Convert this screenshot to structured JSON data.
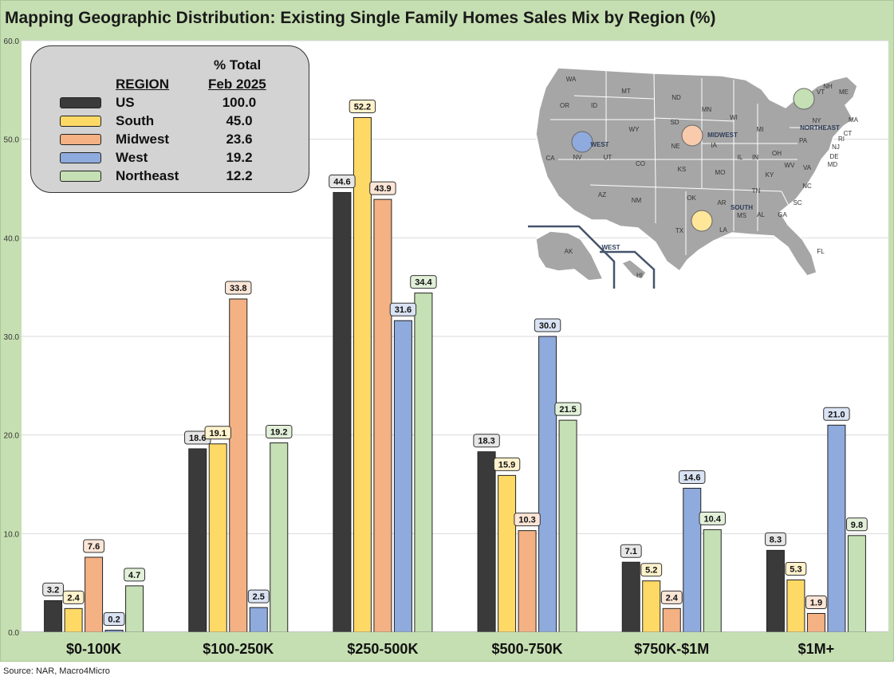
{
  "title": "Mapping Geographic Distribution: Existing Single Family Homes Sales Mix by Region (%)",
  "source": "Source: NAR, Macro4Micro",
  "legend": {
    "header_region": "REGION",
    "header_total_line1": "% Total",
    "header_total_line2": "Feb 2025",
    "rows": [
      {
        "name": "US",
        "value": "100.0",
        "color": "#3a3a3a"
      },
      {
        "name": "South",
        "value": "45.0",
        "color": "#ffd966"
      },
      {
        "name": "Midwest",
        "value": "23.6",
        "color": "#f4b183"
      },
      {
        "name": "West",
        "value": "19.2",
        "color": "#8faadc"
      },
      {
        "name": "Northeast",
        "value": "12.2",
        "color": "#c5e0b4"
      }
    ]
  },
  "map": {
    "state_labels": [
      "WA",
      "MT",
      "ND",
      "MN",
      "WI",
      "MI",
      "OR",
      "ID",
      "SD",
      "WY",
      "NE",
      "IA",
      "IL",
      "IN",
      "OH",
      "NV",
      "UT",
      "CO",
      "KS",
      "MO",
      "KY",
      "WV",
      "VA",
      "CA",
      "AZ",
      "NM",
      "OK",
      "AR",
      "TN",
      "NC",
      "SC",
      "TX",
      "LA",
      "MS",
      "AL",
      "GA",
      "FL",
      "PA",
      "NY",
      "VT",
      "NH",
      "ME",
      "MA",
      "CT",
      "RI",
      "NJ",
      "DE",
      "MD",
      "AK",
      "HI"
    ],
    "region_labels": [
      "WEST",
      "MIDWEST",
      "SOUTH",
      "NORTHEAST",
      "WEST"
    ]
  },
  "chart_data": {
    "type": "bar",
    "title": "Mapping Geographic Distribution: Existing Single Family Homes Sales Mix by Region (%)",
    "categories": [
      "$0-100K",
      "$100-250K",
      "$250-500K",
      "$500-750K",
      "$750K-$1M",
      "$1M+"
    ],
    "series": [
      {
        "name": "US",
        "color": "#3a3a3a",
        "label_bg": "#e7e6e6",
        "values": [
          3.2,
          18.6,
          44.6,
          18.3,
          7.1,
          8.3
        ]
      },
      {
        "name": "South",
        "color": "#ffd966",
        "label_bg": "#fff2cc",
        "values": [
          2.4,
          19.1,
          52.2,
          15.9,
          5.2,
          5.3
        ]
      },
      {
        "name": "Midwest",
        "color": "#f4b183",
        "label_bg": "#fbe5d6",
        "values": [
          7.6,
          33.8,
          43.9,
          10.3,
          2.4,
          1.9
        ]
      },
      {
        "name": "West",
        "color": "#8faadc",
        "label_bg": "#dae3f3",
        "values": [
          0.2,
          2.5,
          31.6,
          30.0,
          14.6,
          21.0
        ]
      },
      {
        "name": "Northeast",
        "color": "#c5e0b4",
        "label_bg": "#e2f0d9",
        "values": [
          4.7,
          19.2,
          34.4,
          21.5,
          10.4,
          9.8
        ]
      }
    ],
    "ylim": [
      0,
      60
    ],
    "yticks": [
      "0.0",
      "10.0",
      "20.0",
      "30.0",
      "40.0",
      "50.0",
      "60.0"
    ],
    "grid": true,
    "legend_position": "top-left"
  }
}
